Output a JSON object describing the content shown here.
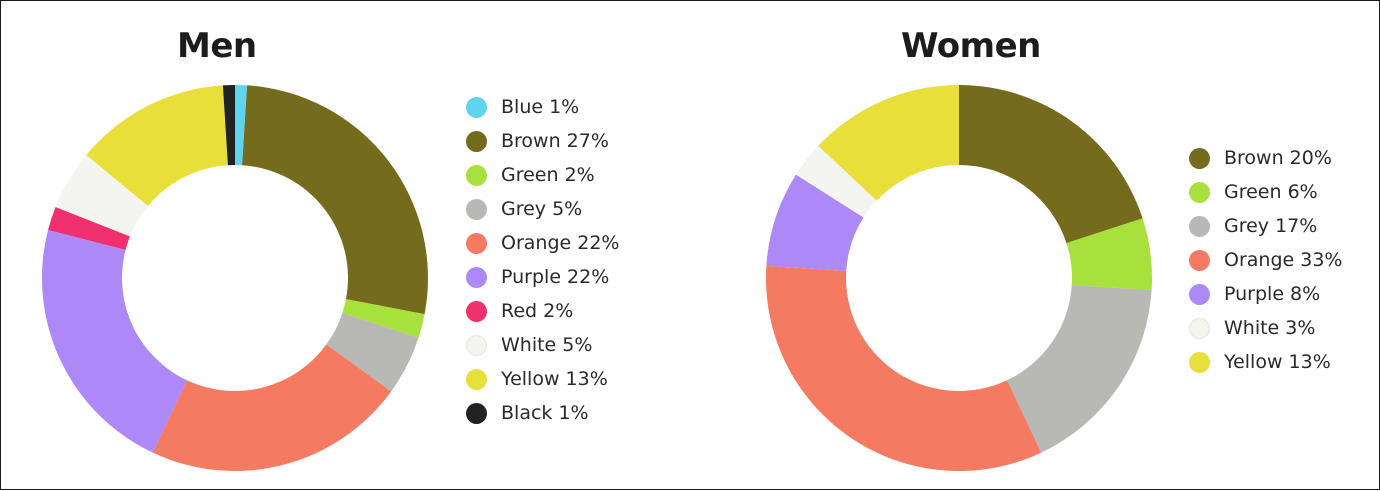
{
  "chart_data": [
    {
      "type": "pie",
      "title": "Men",
      "slices": [
        {
          "label": "Blue 1%",
          "name": "Blue",
          "value": 1,
          "color": "#5fd4ec"
        },
        {
          "label": "Brown 27%",
          "name": "Brown",
          "value": 27,
          "color": "#756b1c"
        },
        {
          "label": "Green 2%",
          "name": "Green",
          "value": 2,
          "color": "#a8e03c"
        },
        {
          "label": "Grey 5%",
          "name": "Grey",
          "value": 5,
          "color": "#b8b8b4"
        },
        {
          "label": "Orange 22%",
          "name": "Orange",
          "value": 22,
          "color": "#f57a62"
        },
        {
          "label": "Purple 22%",
          "name": "Purple",
          "value": 22,
          "color": "#ad88f7"
        },
        {
          "label": "Red 2%",
          "name": "Red",
          "value": 2,
          "color": "#f0306f"
        },
        {
          "label": "White 5%",
          "name": "White",
          "value": 5,
          "color": "#f4f4f0"
        },
        {
          "label": "Yellow 13%",
          "name": "Yellow",
          "value": 13,
          "color": "#e9df3a"
        },
        {
          "label": "Black 1%",
          "name": "Black",
          "value": 1,
          "color": "#222222"
        }
      ],
      "legend": "right"
    },
    {
      "type": "pie",
      "title": "Women",
      "slices": [
        {
          "label": "Brown 20%",
          "name": "Brown",
          "value": 20,
          "color": "#756b1c"
        },
        {
          "label": "Green 6%",
          "name": "Green",
          "value": 6,
          "color": "#a8e03c"
        },
        {
          "label": "Grey 17%",
          "name": "Grey",
          "value": 17,
          "color": "#b8b8b4"
        },
        {
          "label": "Orange 33%",
          "name": "Orange",
          "value": 33,
          "color": "#f57a62"
        },
        {
          "label": "Purple 8%",
          "name": "Purple",
          "value": 8,
          "color": "#ad88f7"
        },
        {
          "label": "White 3%",
          "name": "White",
          "value": 3,
          "color": "#f4f4f0"
        },
        {
          "label": "Yellow 13%",
          "name": "Yellow",
          "value": 13,
          "color": "#e9df3a"
        }
      ],
      "legend": "right"
    }
  ]
}
